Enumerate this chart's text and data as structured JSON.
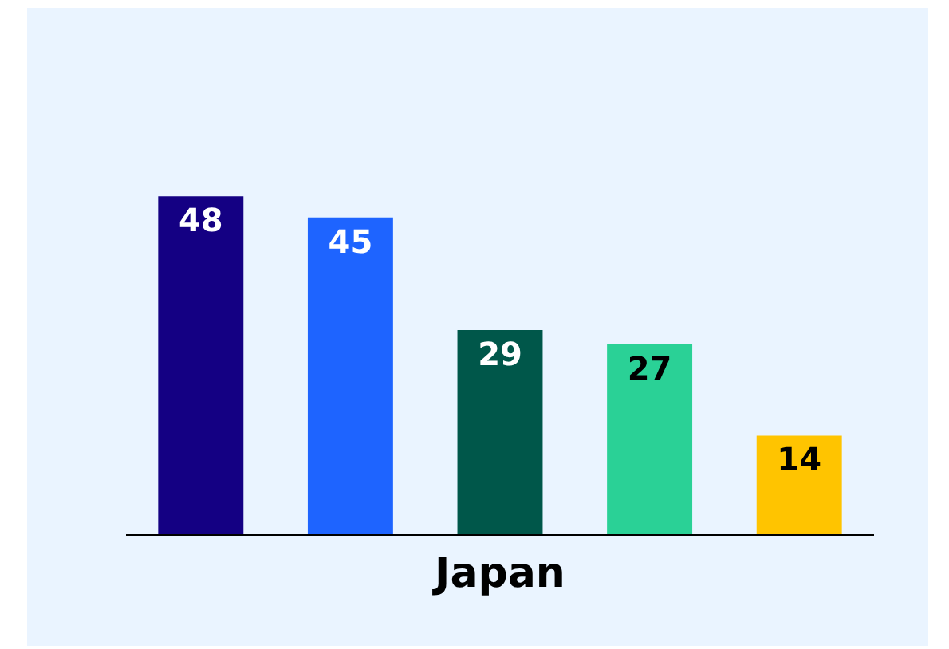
{
  "chart_data": {
    "type": "bar",
    "xlabel": "Japan",
    "categories": [
      null,
      null,
      null,
      null,
      null
    ],
    "values": [
      48,
      45,
      29,
      27,
      14
    ],
    "colors": [
      "#140083",
      "#1e64ff",
      "#00574a",
      "#2ad196",
      "#ffc400"
    ],
    "data_labels": true
  }
}
